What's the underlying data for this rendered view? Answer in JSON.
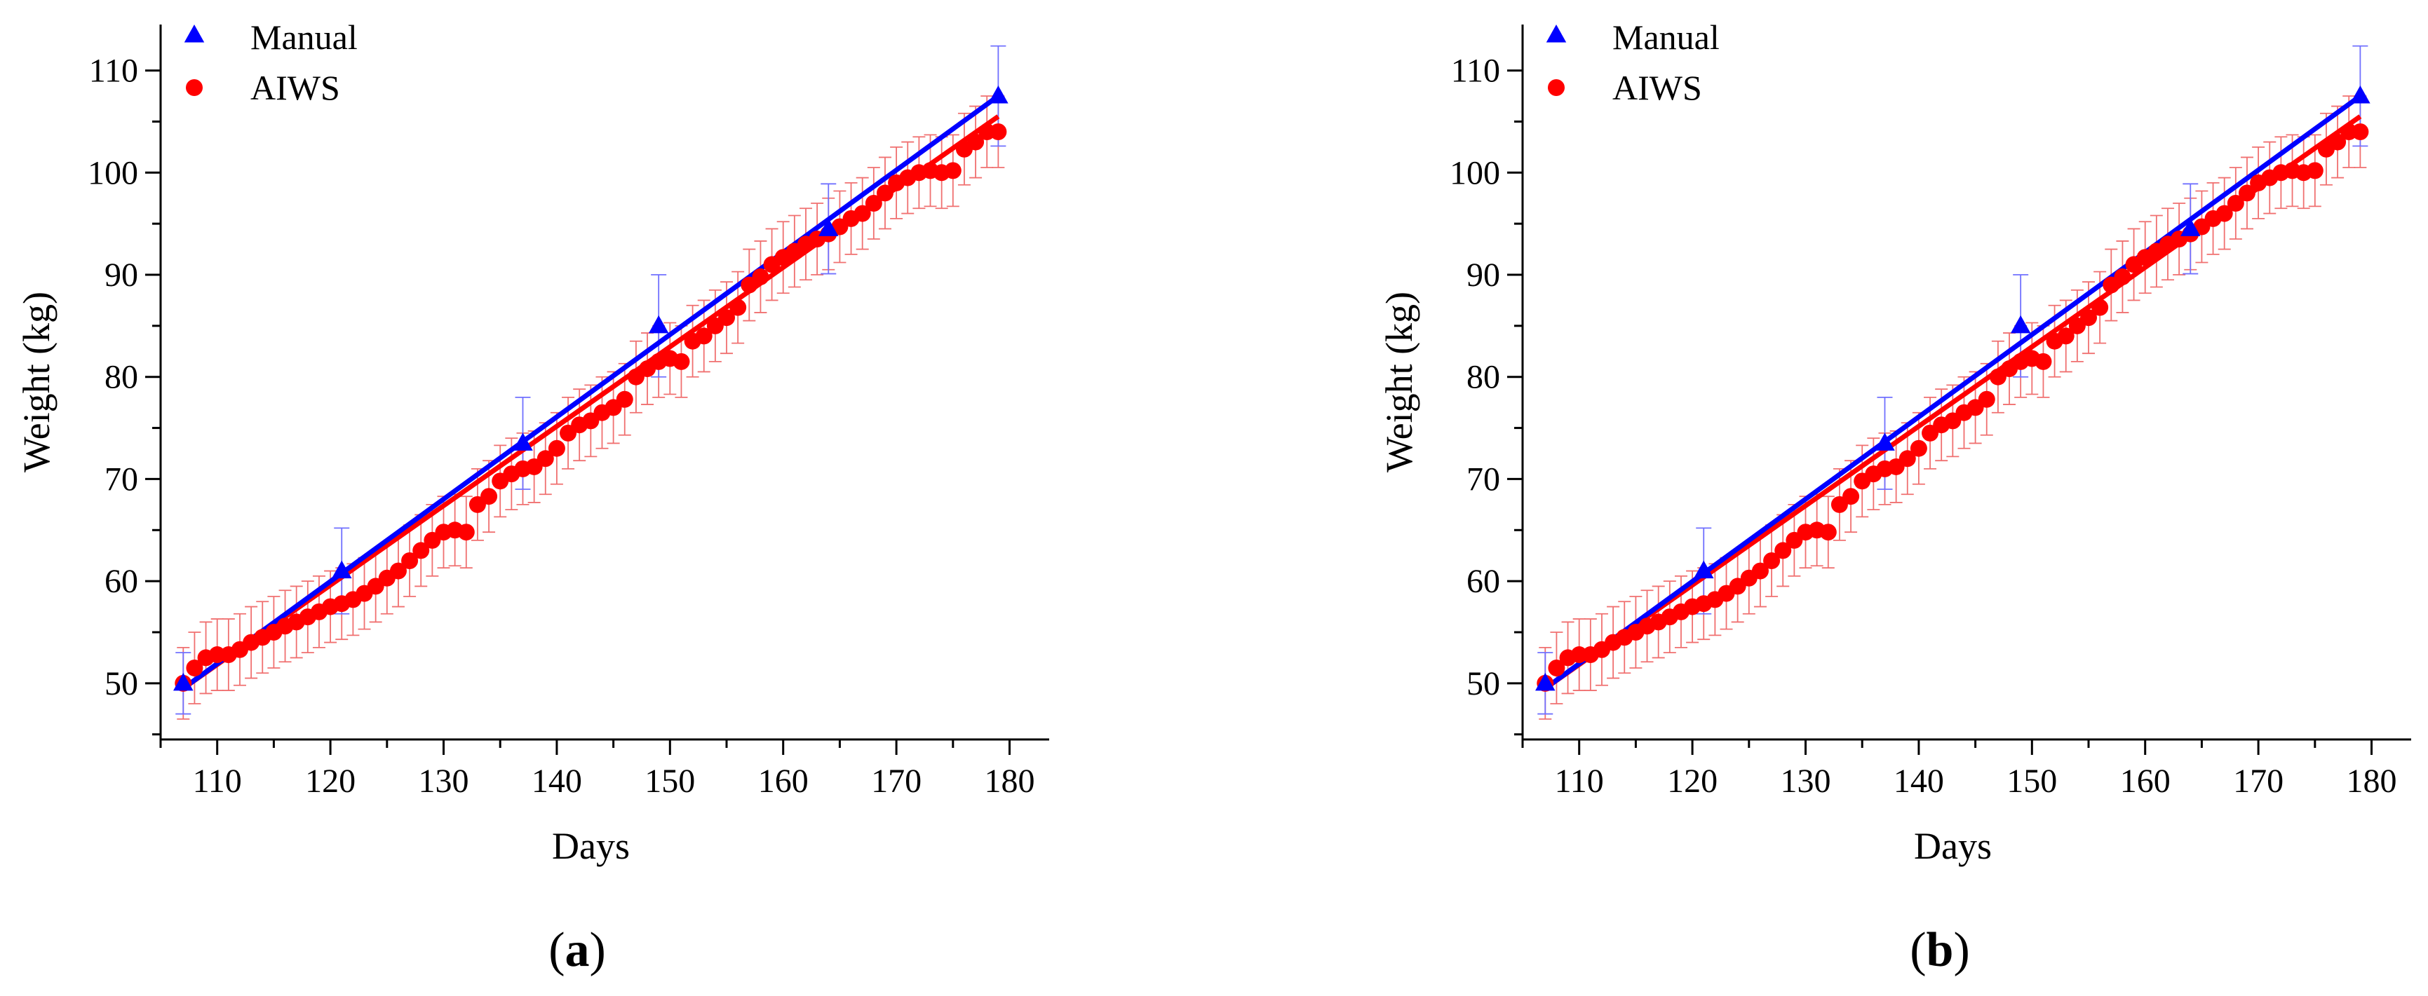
{
  "chart_data": [
    {
      "type": "scatter",
      "panel": "a",
      "xlabel": "Days",
      "ylabel": "Weight  (kg)",
      "xlim": [
        105,
        183.5
      ],
      "ylim": [
        44.5,
        114.5
      ],
      "xticks": [
        110,
        120,
        130,
        140,
        150,
        160,
        170,
        180
      ],
      "yticks": [
        50,
        60,
        70,
        80,
        90,
        100,
        110
      ],
      "legend": {
        "position": "top-left",
        "entries": [
          "Manual",
          "AIWS"
        ]
      },
      "series": [
        {
          "name": "Manual",
          "color": "#0000ff",
          "marker": "triangle",
          "x": [
            107,
            121,
            137,
            149,
            164,
            179
          ],
          "y": [
            50.0,
            61.0,
            73.5,
            85.0,
            94.5,
            107.5
          ],
          "err": [
            3.0,
            4.2,
            4.5,
            5.0,
            4.4,
            4.9
          ],
          "fit": {
            "x": [
              107,
              179
            ],
            "y": [
              49.5,
              107.5
            ]
          }
        },
        {
          "name": "AIWS",
          "color": "#ff0000",
          "marker": "circle",
          "x": [
            107,
            108,
            109,
            110,
            111,
            112,
            113,
            114,
            115,
            116,
            117,
            118,
            119,
            120,
            121,
            122,
            123,
            124,
            125,
            126,
            127,
            128,
            129,
            130,
            131,
            132,
            133,
            134,
            135,
            136,
            137,
            138,
            139,
            140,
            141,
            142,
            143,
            144,
            145,
            146,
            147,
            148,
            149,
            150,
            151,
            152,
            153,
            154,
            155,
            156,
            157,
            158,
            159,
            160,
            161,
            162,
            163,
            164,
            165,
            166,
            167,
            168,
            169,
            170,
            171,
            172,
            173,
            174,
            175,
            176,
            177,
            178,
            179
          ],
          "y": [
            50.0,
            51.5,
            52.5,
            52.8,
            52.8,
            53.3,
            54.0,
            54.5,
            55.0,
            55.6,
            56.0,
            56.5,
            57.0,
            57.5,
            57.8,
            58.2,
            58.8,
            59.5,
            60.3,
            61.0,
            62.0,
            63.0,
            64.0,
            64.8,
            65.0,
            64.8,
            67.5,
            68.3,
            69.8,
            70.5,
            71.0,
            71.2,
            72.0,
            73.0,
            74.5,
            75.3,
            75.7,
            76.5,
            77.0,
            77.8,
            80.0,
            80.8,
            81.5,
            81.8,
            81.5,
            83.5,
            84.0,
            85.0,
            85.8,
            86.8,
            89.0,
            89.8,
            91.0,
            91.7,
            92.3,
            93.0,
            93.5,
            94.0,
            94.7,
            95.5,
            96.0,
            97.0,
            98.0,
            99.0,
            99.5,
            100.0,
            100.2,
            100.0,
            100.2,
            102.3,
            103.0,
            104.0,
            104.0
          ],
          "err": 3.5,
          "fit": {
            "x": [
              107,
              179
            ],
            "y": [
              49.5,
              105.5
            ]
          }
        }
      ],
      "caption": "(a)"
    },
    {
      "type": "scatter",
      "panel": "b",
      "xlabel": "Days",
      "ylabel": "Weight  (kg)",
      "xlim": [
        105,
        183.5
      ],
      "ylim": [
        44.5,
        114.5
      ],
      "xticks": [
        110,
        120,
        130,
        140,
        150,
        160,
        170,
        180
      ],
      "yticks": [
        50,
        60,
        70,
        80,
        90,
        100,
        110
      ],
      "legend": {
        "position": "top-left",
        "entries": [
          "Manual",
          "AIWS"
        ]
      },
      "series": [
        {
          "name": "Manual",
          "color": "#0000ff",
          "marker": "triangle",
          "x": [
            107,
            121,
            137,
            149,
            164,
            179
          ],
          "y": [
            50.0,
            61.0,
            73.5,
            85.0,
            94.5,
            107.5
          ],
          "err": [
            3.0,
            4.2,
            4.5,
            5.0,
            4.4,
            4.9
          ],
          "fit": {
            "x": [
              107,
              179
            ],
            "y": [
              49.5,
              107.5
            ]
          }
        },
        {
          "name": "AIWS",
          "color": "#ff0000",
          "marker": "circle",
          "x": [
            107,
            108,
            109,
            110,
            111,
            112,
            113,
            114,
            115,
            116,
            117,
            118,
            119,
            120,
            121,
            122,
            123,
            124,
            125,
            126,
            127,
            128,
            129,
            130,
            131,
            132,
            133,
            134,
            135,
            136,
            137,
            138,
            139,
            140,
            141,
            142,
            143,
            144,
            145,
            146,
            147,
            148,
            149,
            150,
            151,
            152,
            153,
            154,
            155,
            156,
            157,
            158,
            159,
            160,
            161,
            162,
            163,
            164,
            165,
            166,
            167,
            168,
            169,
            170,
            171,
            172,
            173,
            174,
            175,
            176,
            177,
            178,
            179
          ],
          "y": [
            50.0,
            51.5,
            52.5,
            52.8,
            52.8,
            53.3,
            54.0,
            54.5,
            55.0,
            55.6,
            56.0,
            56.5,
            57.0,
            57.5,
            57.8,
            58.2,
            58.8,
            59.5,
            60.3,
            61.0,
            62.0,
            63.0,
            64.0,
            64.8,
            65.0,
            64.8,
            67.5,
            68.3,
            69.8,
            70.5,
            71.0,
            71.2,
            72.0,
            73.0,
            74.5,
            75.3,
            75.7,
            76.5,
            77.0,
            77.8,
            80.0,
            80.8,
            81.5,
            81.8,
            81.5,
            83.5,
            84.0,
            85.0,
            85.8,
            86.8,
            89.0,
            89.8,
            91.0,
            91.7,
            92.3,
            93.0,
            93.5,
            94.0,
            94.7,
            95.5,
            96.0,
            97.0,
            98.0,
            99.0,
            99.5,
            100.0,
            100.2,
            100.0,
            100.2,
            102.3,
            103.0,
            104.0,
            104.0
          ],
          "err": 3.5,
          "fit": {
            "x": [
              107,
              179
            ],
            "y": [
              49.5,
              105.5
            ]
          }
        }
      ],
      "caption": "(b)"
    }
  ]
}
